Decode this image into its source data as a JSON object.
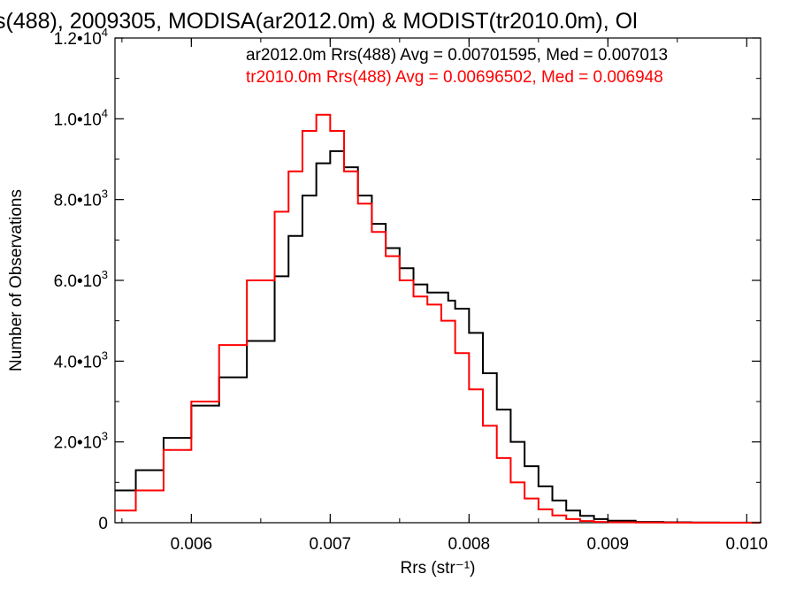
{
  "chart_data": {
    "type": "line",
    "title": "s(488), 2009305, MODISA(ar2012.0m) & MODIST(tr2010.0m), Ol",
    "xlabel": "Rrs (str⁻¹)",
    "ylabel": "Number of Observations",
    "xlim": [
      0.00545,
      0.0101
    ],
    "ylim": [
      0,
      12000
    ],
    "x_ticks": [
      0.006,
      0.007,
      0.008,
      0.009,
      0.01
    ],
    "x_tick_labels": [
      "0.006",
      "0.007",
      "0.008",
      "0.009",
      "0.010"
    ],
    "y_ticks": [
      0,
      2000,
      4000,
      6000,
      8000,
      10000,
      12000
    ],
    "y_tick_labels": [
      {
        "mant": "0",
        "exp": ""
      },
      {
        "mant": "2.0•10",
        "exp": "3"
      },
      {
        "mant": "4.0•10",
        "exp": "3"
      },
      {
        "mant": "6.0•10",
        "exp": "3"
      },
      {
        "mant": "8.0•10",
        "exp": "3"
      },
      {
        "mant": "1.0•10",
        "exp": "4"
      },
      {
        "mant": "1.2•10",
        "exp": "4"
      }
    ],
    "grid": false,
    "legend_placement": "top-right",
    "series": [
      {
        "name": "ar2012.0m Rrs(488) Avg = 0.00701595, Med = 0.007013",
        "color": "#000000",
        "x": [
          0.00545,
          0.0056,
          0.0058,
          0.006,
          0.0062,
          0.0064,
          0.0066,
          0.0067,
          0.0068,
          0.0069,
          0.007,
          0.0071,
          0.0072,
          0.0073,
          0.0074,
          0.0075,
          0.0076,
          0.0077,
          0.00785,
          0.0079,
          0.008,
          0.0081,
          0.0082,
          0.0083,
          0.0084,
          0.0085,
          0.0086,
          0.0087,
          0.0088,
          0.0089,
          0.009,
          0.0092,
          0.0094,
          0.0096,
          0.0098,
          0.0101
        ],
        "y": [
          800,
          1300,
          2100,
          2900,
          3600,
          4500,
          6100,
          7100,
          8100,
          8900,
          9200,
          8800,
          8100,
          7400,
          6800,
          6300,
          5900,
          5700,
          5500,
          5300,
          4700,
          3700,
          2800,
          2000,
          1400,
          900,
          550,
          300,
          170,
          90,
          50,
          20,
          10,
          5,
          2,
          0
        ]
      },
      {
        "name": "tr2010.0m Rrs(488) Avg = 0.00696502, Med = 0.006948",
        "color": "#ff0000",
        "x": [
          0.00545,
          0.0056,
          0.0058,
          0.006,
          0.0062,
          0.0064,
          0.0066,
          0.0067,
          0.0068,
          0.0069,
          0.007,
          0.0071,
          0.0072,
          0.0073,
          0.0074,
          0.0075,
          0.0076,
          0.0077,
          0.0078,
          0.0079,
          0.008,
          0.0081,
          0.0082,
          0.0083,
          0.0084,
          0.0085,
          0.0086,
          0.0087,
          0.0088,
          0.0089,
          0.009,
          0.0092,
          0.0094,
          0.0096,
          0.0098,
          0.0101
        ],
        "y": [
          300,
          800,
          1800,
          3000,
          4400,
          6000,
          7700,
          8700,
          9700,
          10100,
          9700,
          8700,
          7900,
          7200,
          6600,
          6000,
          5600,
          5400,
          5000,
          4200,
          3300,
          2400,
          1600,
          1000,
          600,
          330,
          180,
          90,
          40,
          20,
          10,
          5,
          2,
          1,
          0,
          0
        ]
      }
    ]
  }
}
